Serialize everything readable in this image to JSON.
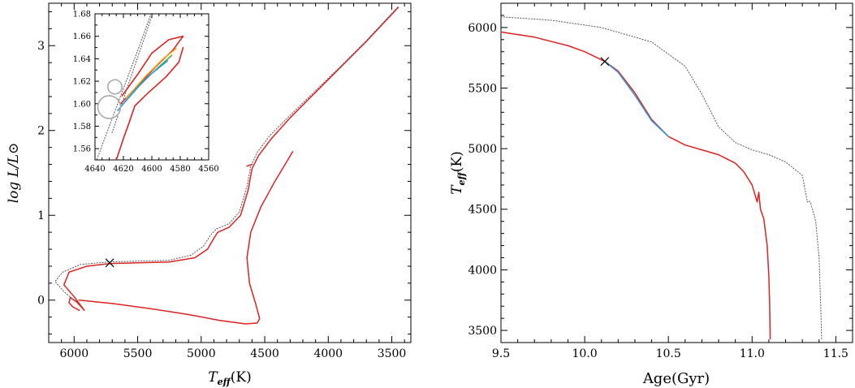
{
  "chart_data": [
    {
      "type": "line",
      "name": "hr-diagram",
      "xlabel_main": "T",
      "xlabel_sub": "eff",
      "xlabel_unit": "(K)",
      "ylabel": "log L/L⊙",
      "xlim": [
        6200,
        3350
      ],
      "ylim": [
        -0.5,
        3.5
      ],
      "x_reversed": true,
      "xticks": [
        6000,
        5500,
        5000,
        4500,
        4000,
        3500
      ],
      "yticks": [
        0,
        1,
        2,
        3
      ],
      "series": [
        {
          "color": "#dd2222",
          "style": "solid",
          "points": [
            [
              5960,
              -0.12
            ],
            [
              6010,
              -0.08
            ],
            [
              6040,
              -0.03
            ],
            [
              6030,
              0.03
            ],
            [
              5980,
              -0.02
            ],
            [
              5920,
              -0.12
            ],
            [
              6000,
              0.04
            ],
            [
              6080,
              0.18
            ],
            [
              6040,
              0.33
            ],
            [
              5900,
              0.4
            ],
            [
              5730,
              0.43
            ],
            [
              5500,
              0.44
            ],
            [
              5250,
              0.45
            ],
            [
              5050,
              0.5
            ],
            [
              4950,
              0.6
            ],
            [
              4900,
              0.73
            ],
            [
              4870,
              0.8
            ],
            [
              4780,
              0.86
            ],
            [
              4690,
              1.0
            ],
            [
              4630,
              1.3
            ],
            [
              4600,
              1.55
            ],
            [
              4550,
              1.7
            ],
            [
              4450,
              1.9
            ],
            [
              4300,
              2.15
            ],
            [
              4100,
              2.45
            ],
            [
              3900,
              2.75
            ],
            [
              3700,
              3.05
            ],
            [
              3450,
              3.45
            ]
          ]
        },
        {
          "color": "#dd2222",
          "style": "solid",
          "points": [
            [
              4600,
              1.6
            ],
            [
              4640,
              1.58
            ]
          ]
        },
        {
          "color": "#dd2222",
          "style": "solid",
          "points": [
            [
              5960,
              0.0
            ],
            [
              5700,
              -0.04
            ],
            [
              5400,
              -0.1
            ],
            [
              5100,
              -0.17
            ],
            [
              4850,
              -0.24
            ],
            [
              4650,
              -0.28
            ],
            [
              4560,
              -0.27
            ],
            [
              4540,
              -0.22
            ],
            [
              4570,
              -0.05
            ],
            [
              4620,
              0.2
            ],
            [
              4640,
              0.5
            ],
            [
              4610,
              0.8
            ],
            [
              4530,
              1.1
            ],
            [
              4420,
              1.4
            ],
            [
              4280,
              1.75
            ]
          ]
        },
        {
          "color": "#555555",
          "style": "dotted",
          "points": [
            [
              6000,
              0.0
            ],
            [
              6080,
              0.1
            ],
            [
              6150,
              0.22
            ],
            [
              6090,
              0.33
            ],
            [
              5950,
              0.42
            ],
            [
              5730,
              0.45
            ],
            [
              5500,
              0.46
            ],
            [
              5250,
              0.47
            ],
            [
              5080,
              0.53
            ],
            [
              4980,
              0.64
            ],
            [
              4930,
              0.76
            ],
            [
              4880,
              0.84
            ],
            [
              4780,
              0.9
            ],
            [
              4700,
              1.04
            ],
            [
              4640,
              1.34
            ],
            [
              4610,
              1.58
            ],
            [
              4560,
              1.74
            ],
            [
              4460,
              1.94
            ],
            [
              4300,
              2.18
            ],
            [
              4100,
              2.47
            ],
            [
              3900,
              2.76
            ],
            [
              3700,
              3.06
            ],
            [
              3450,
              3.46
            ]
          ]
        }
      ],
      "marker": {
        "symbol": "x",
        "x": 5720,
        "y": 0.44
      },
      "inset": {
        "xlim": [
          4640,
          4560
        ],
        "ylim": [
          1.55,
          1.68
        ],
        "xticks": [
          4640,
          4620,
          4600,
          4580,
          4560
        ],
        "yticks": [
          1.56,
          1.58,
          1.6,
          1.62,
          1.64,
          1.66,
          1.68
        ],
        "series": [
          {
            "color": "#555555",
            "style": "dotted",
            "points": [
              [
                4640,
                1.546
              ],
              [
                4632,
                1.573
              ],
              [
                4624,
                1.6
              ],
              [
                4616,
                1.627
              ],
              [
                4608,
                1.654
              ],
              [
                4600,
                1.682
              ]
            ]
          },
          {
            "color": "#555555",
            "style": "dotted",
            "points": [
              [
                4628,
                1.574
              ],
              [
                4620,
                1.604
              ],
              [
                4612,
                1.634
              ],
              [
                4604,
                1.663
              ],
              [
                4599,
                1.682
              ]
            ]
          },
          {
            "color": "#dd2222",
            "style": "solid",
            "points": [
              [
                4625,
                1.55
              ],
              [
                4620,
                1.569
              ],
              [
                4616,
                1.583
              ],
              [
                4612,
                1.598
              ],
              [
                4604,
                1.608
              ],
              [
                4590,
                1.624
              ],
              [
                4581,
                1.637
              ],
              [
                4578,
                1.65
              ]
            ]
          },
          {
            "color": "#dd2222",
            "style": "solid",
            "points": [
              [
                4621,
                1.607
              ],
              [
                4610,
                1.626
              ],
              [
                4600,
                1.645
              ],
              [
                4588,
                1.657
              ],
              [
                4578,
                1.66
              ],
              [
                4585,
                1.648
              ],
              [
                4598,
                1.632
              ],
              [
                4612,
                1.613
              ],
              [
                4622,
                1.6
              ]
            ]
          },
          {
            "color": "#f0a020",
            "style": "solid",
            "points": [
              [
                4618,
                1.605
              ],
              [
                4604,
                1.625
              ],
              [
                4592,
                1.64
              ],
              [
                4583,
                1.649
              ]
            ]
          },
          {
            "color": "#40b040",
            "style": "solid",
            "points": [
              [
                4620,
                1.6
              ],
              [
                4606,
                1.62
              ],
              [
                4594,
                1.634
              ],
              [
                4586,
                1.643
              ]
            ]
          },
          {
            "color": "#3399dd",
            "style": "solid",
            "points": [
              [
                4624,
                1.594
              ],
              [
                4612,
                1.612
              ],
              [
                4600,
                1.627
              ],
              [
                4589,
                1.638
              ]
            ]
          }
        ],
        "circles": [
          {
            "x": 4626,
            "y": 1.615,
            "r": 1.0
          },
          {
            "x": 4630,
            "y": 1.597,
            "r": 1.6
          }
        ]
      }
    },
    {
      "type": "line",
      "name": "teff-age",
      "xlabel": "Age(Gyr)",
      "ylabel_main": "T",
      "ylabel_sub": "eff",
      "ylabel_unit": "(K)",
      "xlim": [
        9.5,
        11.6
      ],
      "ylim": [
        3400,
        6200
      ],
      "xticks": [
        9.5,
        10.0,
        10.5,
        11.0,
        11.5
      ],
      "yticks": [
        3500,
        4000,
        4500,
        5000,
        5500,
        6000
      ],
      "series": [
        {
          "color": "#dd2222",
          "style": "solid",
          "points": [
            [
              9.5,
              5963
            ],
            [
              9.7,
              5920
            ],
            [
              9.9,
              5850
            ],
            [
              10.0,
              5800
            ],
            [
              10.12,
              5720
            ],
            [
              10.2,
              5640
            ],
            [
              10.3,
              5460
            ],
            [
              10.4,
              5240
            ],
            [
              10.5,
              5100
            ],
            [
              10.6,
              5030
            ],
            [
              10.7,
              4990
            ],
            [
              10.8,
              4950
            ],
            [
              10.9,
              4880
            ],
            [
              10.95,
              4810
            ],
            [
              11.0,
              4700
            ],
            [
              11.03,
              4560
            ],
            [
              11.04,
              4640
            ],
            [
              11.05,
              4500
            ],
            [
              11.07,
              4420
            ],
            [
              11.09,
              4200
            ],
            [
              11.1,
              3950
            ],
            [
              11.105,
              3700
            ],
            [
              11.108,
              3430
            ]
          ]
        },
        {
          "color": "#3399dd",
          "style": "solid",
          "points": [
            [
              10.12,
              5720
            ],
            [
              10.2,
              5630
            ],
            [
              10.3,
              5440
            ],
            [
              10.4,
              5230
            ],
            [
              10.5,
              5100
            ]
          ]
        },
        {
          "color": "#555555",
          "style": "dotted",
          "points": [
            [
              9.5,
              6088
            ],
            [
              9.8,
              6060
            ],
            [
              10.1,
              6000
            ],
            [
              10.4,
              5880
            ],
            [
              10.6,
              5680
            ],
            [
              10.7,
              5450
            ],
            [
              10.8,
              5180
            ],
            [
              10.9,
              5050
            ],
            [
              11.0,
              4990
            ],
            [
              11.1,
              4950
            ],
            [
              11.2,
              4890
            ],
            [
              11.3,
              4780
            ],
            [
              11.33,
              4560
            ],
            [
              11.34,
              4570
            ],
            [
              11.35,
              4550
            ],
            [
              11.38,
              4400
            ],
            [
              11.4,
              4100
            ],
            [
              11.41,
              3700
            ],
            [
              11.415,
              3430
            ]
          ]
        }
      ],
      "marker": {
        "symbol": "x",
        "x": 10.12,
        "y": 5720
      }
    }
  ]
}
